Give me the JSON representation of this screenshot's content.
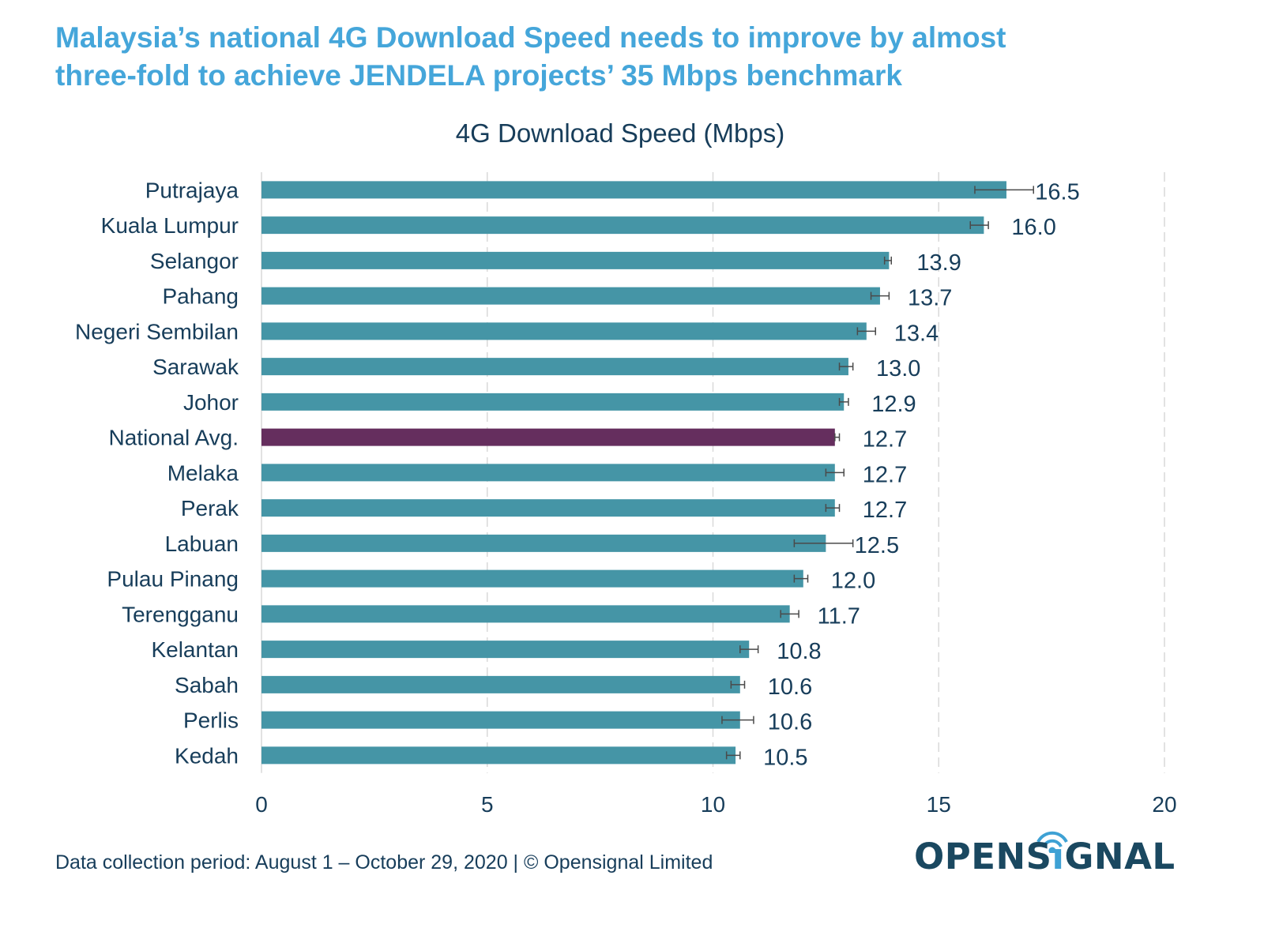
{
  "headline": {
    "line1": "Malaysia’s national 4G Download Speed needs to improve by almost",
    "line2": "three-fold to achieve JENDELA projects’ 35 Mbps benchmark"
  },
  "footer": {
    "text": "Data collection period: August 1 – October 29, 2020 | © Opensignal Limited"
  },
  "logo": {
    "pre": "OPENS",
    "i": "ı",
    "post": "GNAL",
    "icon": "wifi-signal-icon"
  },
  "colors": {
    "headline": "#45a6da",
    "text": "#173d5a",
    "bar": "#4595a6",
    "highlight": "#652e5e",
    "grid": "#d9d9d9",
    "errorbar": "#4a4a4a"
  },
  "chart_data": {
    "type": "bar",
    "orientation": "horizontal",
    "title": "4G Download Speed (Mbps)",
    "xlabel": "",
    "ylabel": "",
    "xlim": [
      0,
      20
    ],
    "xticks": [
      0,
      5,
      10,
      15,
      20
    ],
    "grid": "vertical dashed",
    "categories": [
      "Putrajaya",
      "Kuala Lumpur",
      "Selangor",
      "Pahang",
      "Negeri Sembilan",
      "Sarawak",
      "Johor",
      "National Avg.",
      "Melaka",
      "Perak",
      "Labuan",
      "Pulau Pinang",
      "Terengganu",
      "Kelantan",
      "Sabah",
      "Perlis",
      "Kedah"
    ],
    "values": [
      16.5,
      16.0,
      13.9,
      13.7,
      13.4,
      13.0,
      12.9,
      12.7,
      12.7,
      12.7,
      12.5,
      12.0,
      11.7,
      10.8,
      10.6,
      10.6,
      10.5
    ],
    "labels": [
      "16.5",
      "16.0",
      "13.9",
      "13.7",
      "13.4",
      "13.0",
      "12.9",
      "12.7",
      "12.7",
      "12.7",
      "12.5",
      "12.0",
      "11.7",
      "10.8",
      "10.6",
      "10.6",
      "10.5"
    ],
    "error_low": [
      15.8,
      15.7,
      13.8,
      13.5,
      13.2,
      12.8,
      12.8,
      12.7,
      12.5,
      12.5,
      11.8,
      11.8,
      11.5,
      10.6,
      10.4,
      10.2,
      10.3
    ],
    "error_high": [
      17.1,
      16.1,
      13.95,
      13.9,
      13.6,
      13.1,
      13.0,
      12.8,
      12.9,
      12.8,
      13.1,
      12.1,
      11.9,
      11.0,
      10.7,
      10.9,
      10.6
    ],
    "highlight": [
      "National Avg."
    ]
  }
}
